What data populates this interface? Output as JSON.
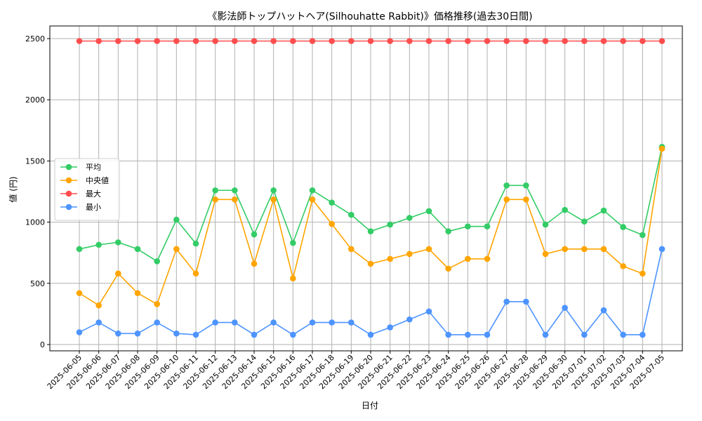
{
  "chart_data": {
    "type": "line",
    "title": "《影法師トップハットヘア(Silhouhatte Rabbit)》価格推移(過去30日間)",
    "xlabel": "日付",
    "ylabel": "値 (円)",
    "ylim": [
      0,
      2600
    ],
    "yticks": [
      0,
      500,
      1000,
      1500,
      2000,
      2500
    ],
    "grid": true,
    "legend_position": "center-left",
    "categories": [
      "2025-06-05",
      "2025-06-06",
      "2025-06-07",
      "2025-06-08",
      "2025-06-09",
      "2025-06-10",
      "2025-06-11",
      "2025-06-12",
      "2025-06-13",
      "2025-06-14",
      "2025-06-15",
      "2025-06-16",
      "2025-06-17",
      "2025-06-18",
      "2025-06-19",
      "2025-06-20",
      "2025-06-21",
      "2025-06-22",
      "2025-06-23",
      "2025-06-24",
      "2025-06-25",
      "2025-06-26",
      "2025-06-27",
      "2025-06-28",
      "2025-06-29",
      "2025-06-30",
      "2025-07-01",
      "2025-07-02",
      "2025-07-03",
      "2025-07-04",
      "2025-07-05"
    ],
    "series": [
      {
        "name": "平均",
        "color": "#33cc66",
        "values": [
          780,
          815,
          835,
          780,
          680,
          1020,
          825,
          1260,
          1260,
          900,
          1260,
          830,
          1260,
          1160,
          1060,
          925,
          980,
          1035,
          1090,
          925,
          965,
          965,
          1300,
          1300,
          980,
          1100,
          1005,
          1095,
          960,
          895,
          1615
        ]
      },
      {
        "name": "中央値",
        "color": "#ffa500",
        "values": [
          420,
          320,
          580,
          420,
          330,
          780,
          580,
          1185,
          1185,
          660,
          1185,
          540,
          1185,
          985,
          780,
          660,
          700,
          740,
          780,
          620,
          700,
          700,
          1185,
          1185,
          740,
          780,
          780,
          780,
          640,
          580,
          1600
        ]
      },
      {
        "name": "最大",
        "color": "#ff4d4d",
        "values": [
          2480,
          2480,
          2480,
          2480,
          2480,
          2480,
          2480,
          2480,
          2480,
          2480,
          2480,
          2480,
          2480,
          2480,
          2480,
          2480,
          2480,
          2480,
          2480,
          2480,
          2480,
          2480,
          2480,
          2480,
          2480,
          2480,
          2480,
          2480,
          2480,
          2480,
          2480
        ]
      },
      {
        "name": "最小",
        "color": "#4d94ff",
        "values": [
          100,
          180,
          90,
          90,
          180,
          90,
          80,
          180,
          180,
          80,
          180,
          80,
          180,
          180,
          180,
          80,
          140,
          205,
          270,
          80,
          80,
          80,
          350,
          350,
          80,
          300,
          80,
          280,
          80,
          80,
          780
        ]
      }
    ]
  }
}
